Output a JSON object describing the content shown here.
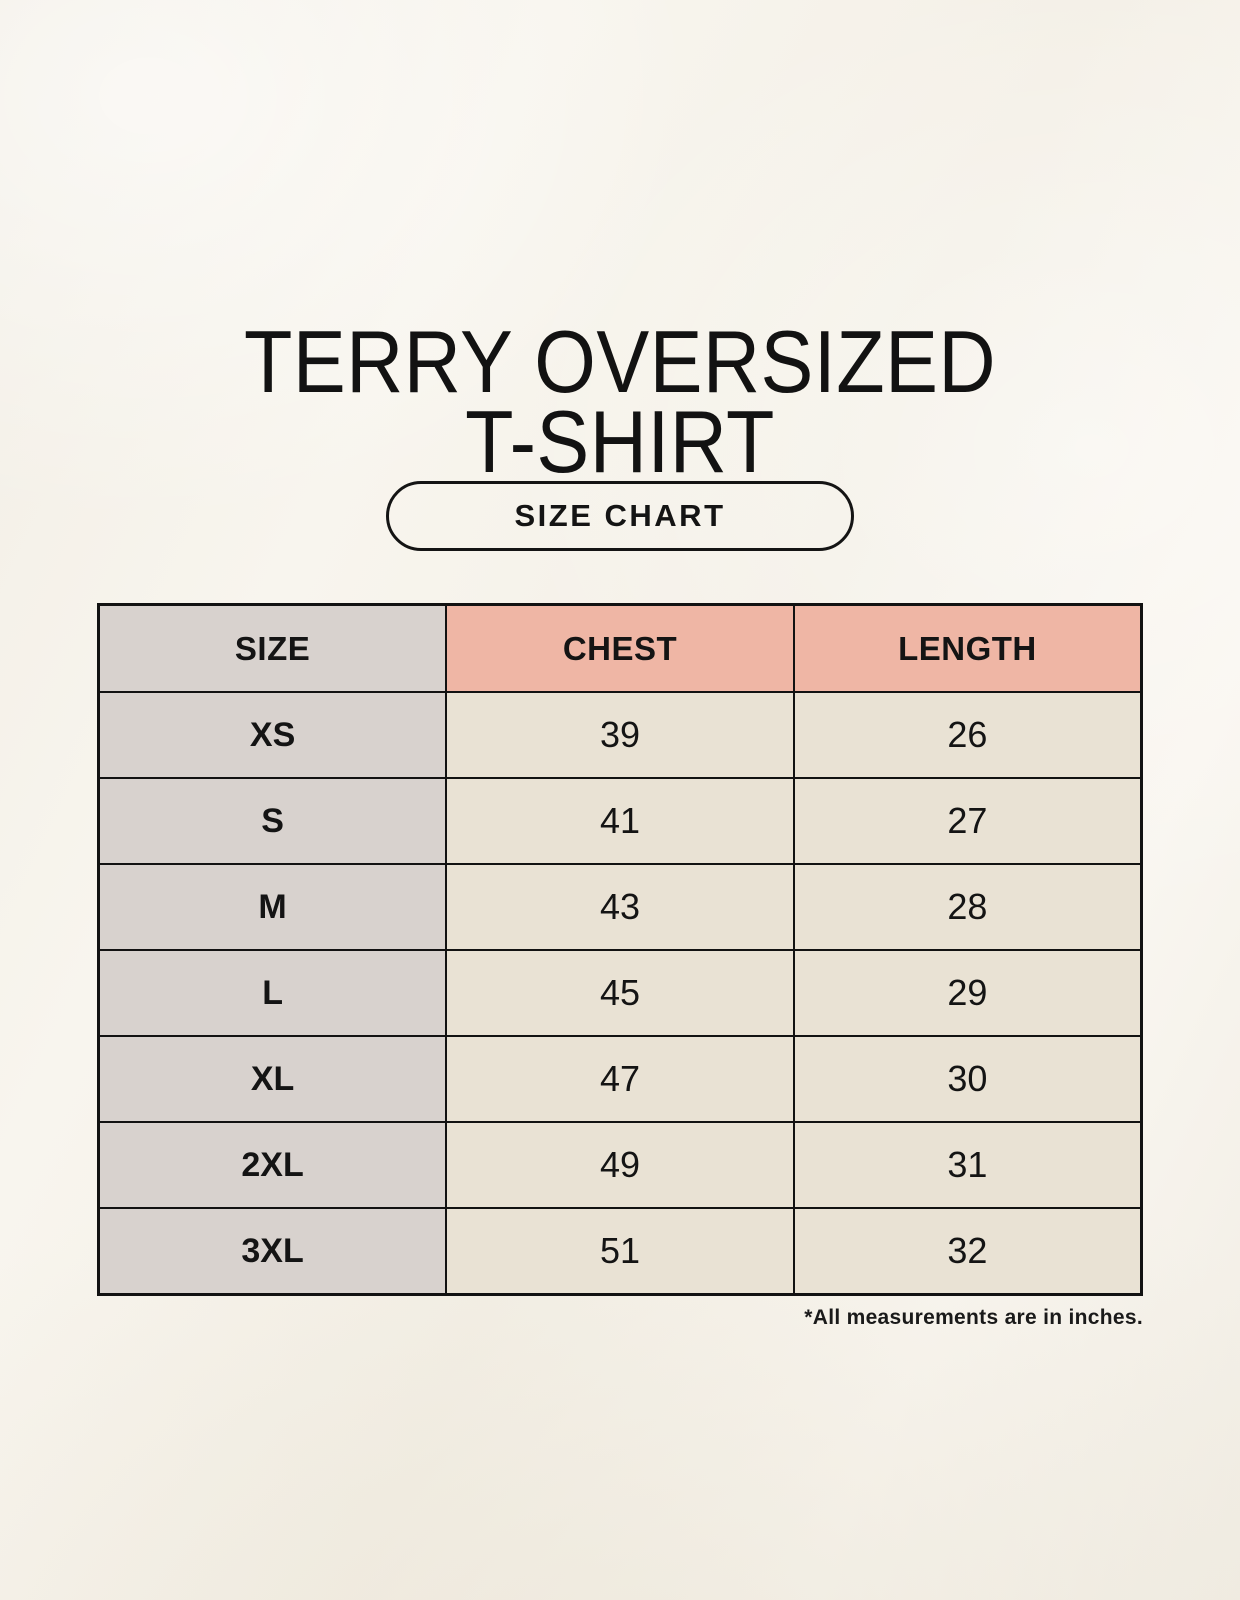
{
  "title": {
    "line1": "TERRY OVERSIZED",
    "line2": "T-SHIRT"
  },
  "size_chart_button": {
    "label": "SIZE CHART"
  },
  "chart_data": {
    "type": "table",
    "title": "TERRY OVERSIZED T-SHIRT",
    "columns": [
      "SIZE",
      "CHEST",
      "LENGTH"
    ],
    "rows": [
      {
        "size": "XS",
        "chest": 39,
        "length": 26
      },
      {
        "size": "S",
        "chest": 41,
        "length": 27
      },
      {
        "size": "M",
        "chest": 43,
        "length": 28
      },
      {
        "size": "L",
        "chest": 45,
        "length": 29
      },
      {
        "size": "XL",
        "chest": 47,
        "length": 30
      },
      {
        "size": "2XL",
        "chest": 49,
        "length": 31
      },
      {
        "size": "3XL",
        "chest": 51,
        "length": 32
      }
    ],
    "note": "*All measurements are in inches.",
    "units": "inches"
  },
  "colors": {
    "background": "#f6f2ea",
    "table_header_accent": "#efb6a5",
    "size_column_bg": "#d8d2ce",
    "value_cell_bg": "#e9e2d4",
    "border": "#121212",
    "text": "#141414"
  }
}
